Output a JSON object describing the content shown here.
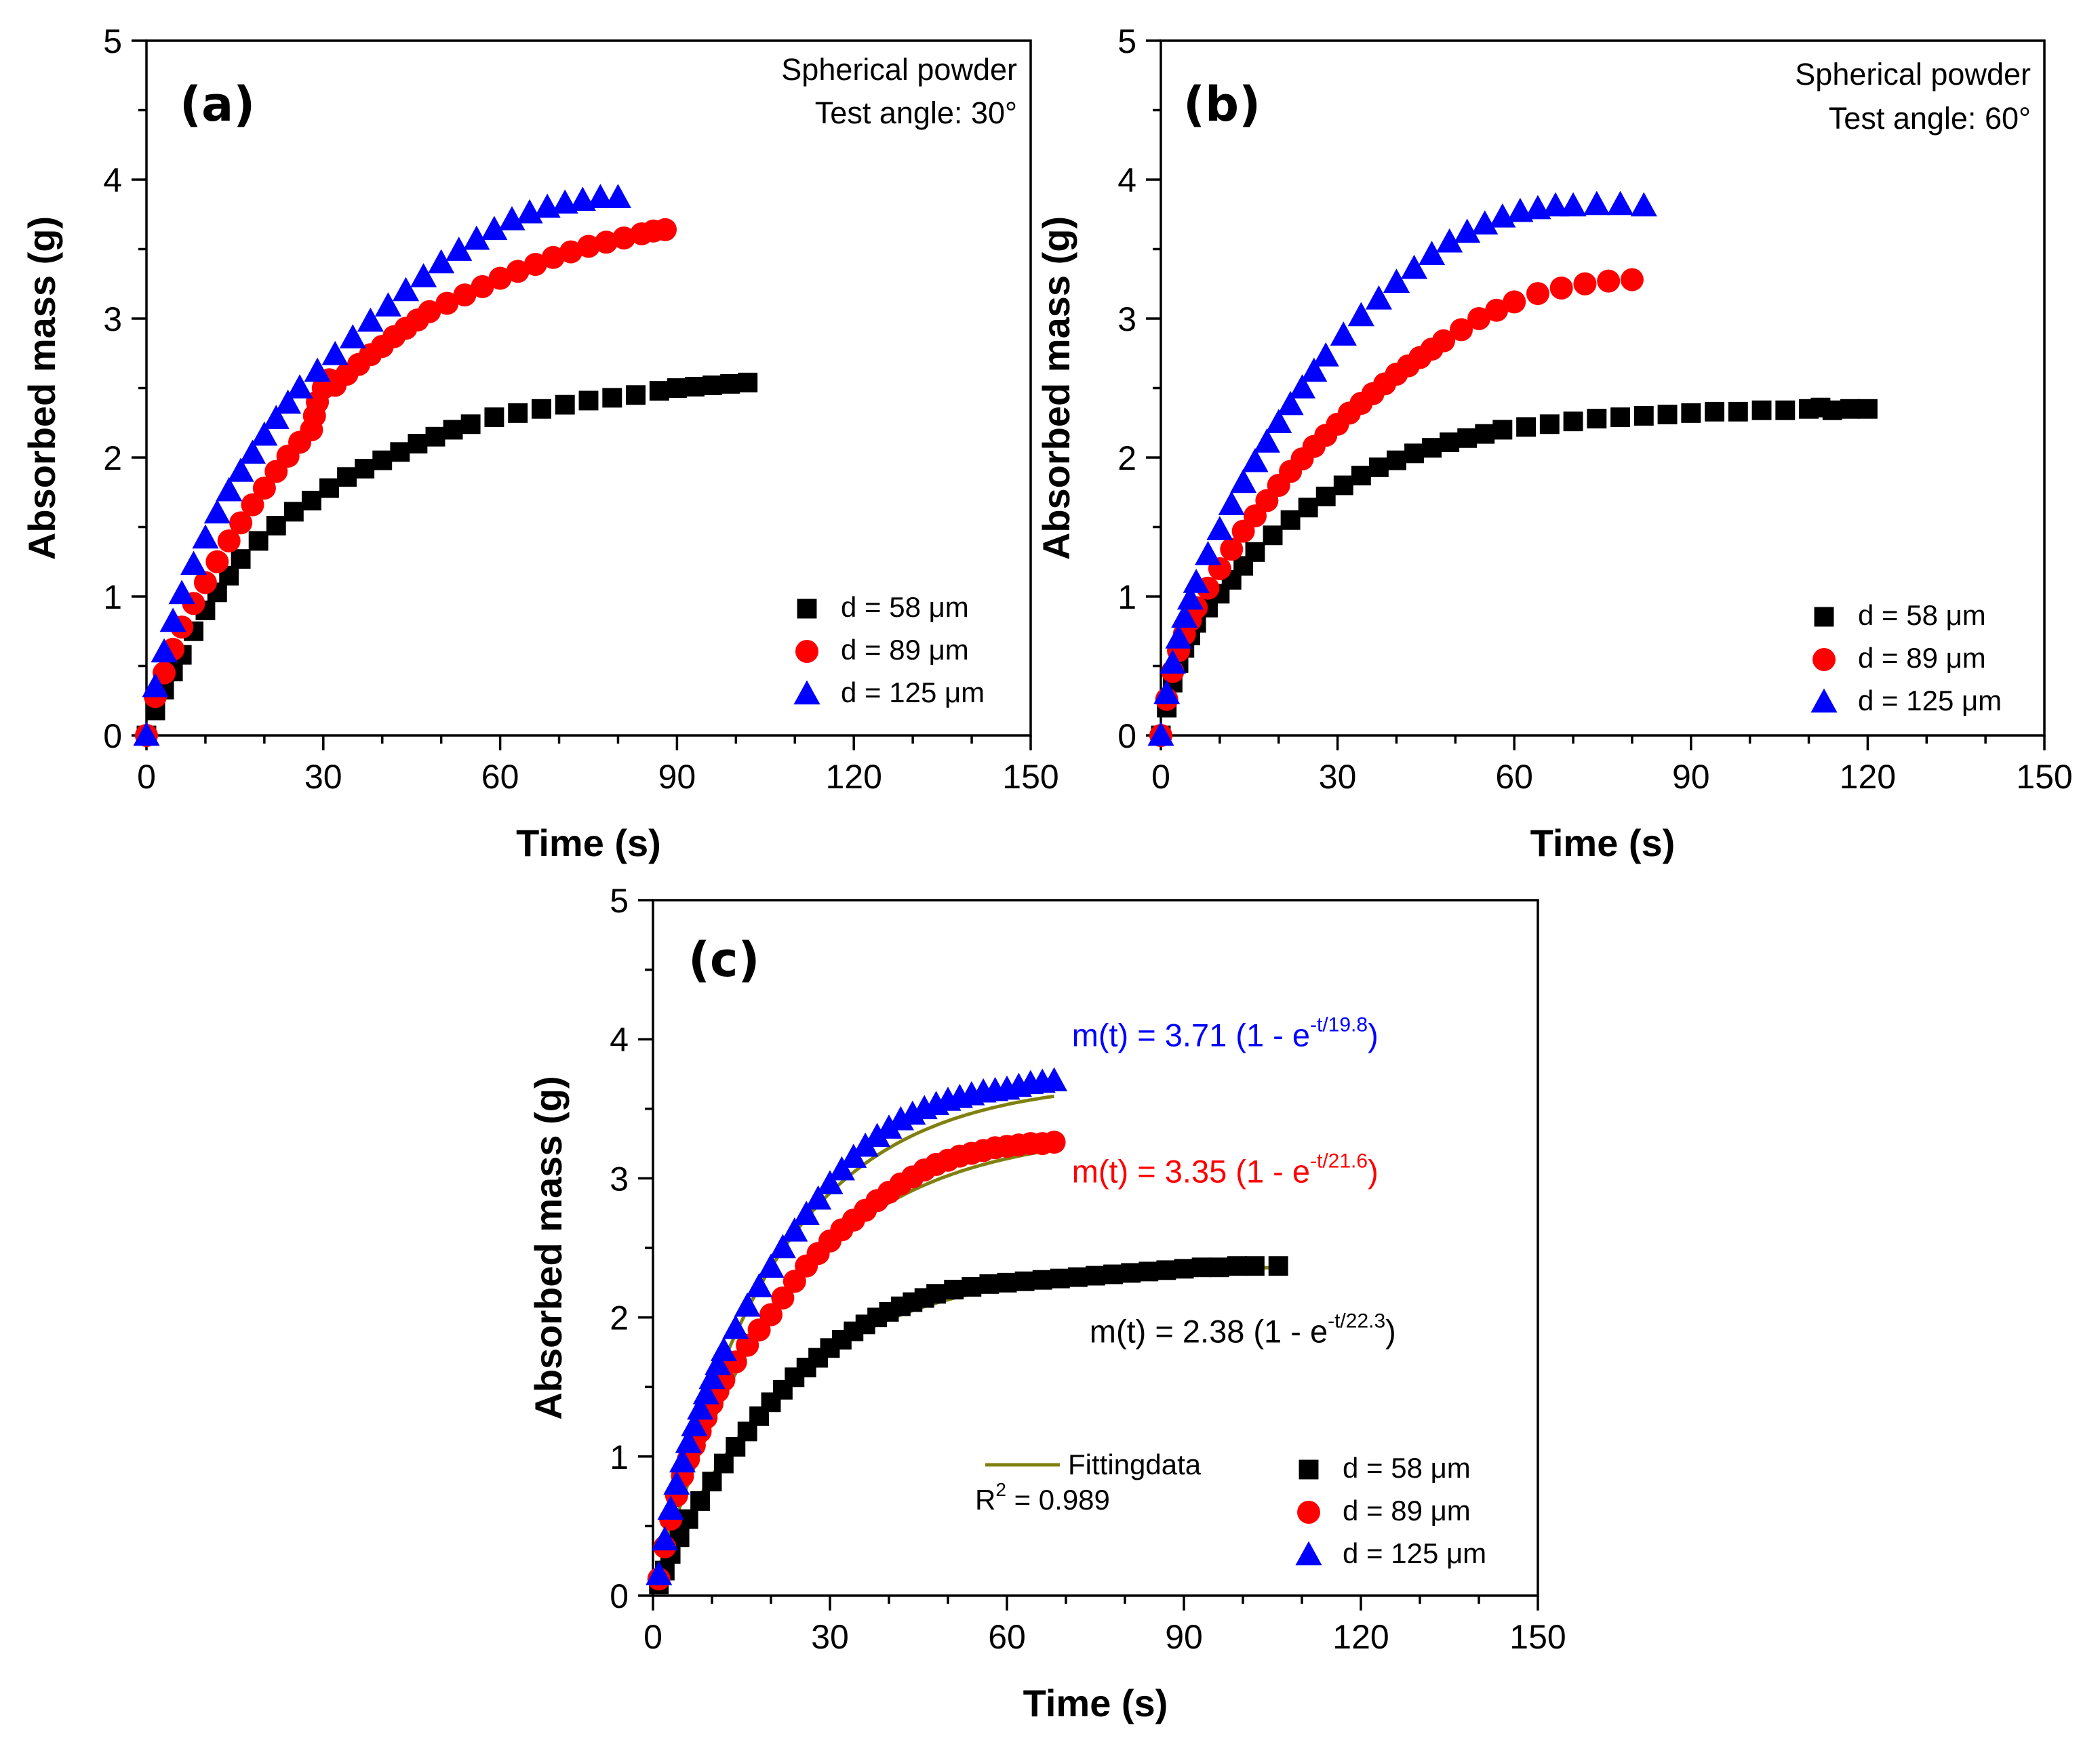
{
  "colors": {
    "s58": "#000000",
    "s89": "#ff0000",
    "s125": "#0000ff",
    "fit": "#808010"
  },
  "chart_data": [
    {
      "type": "scatter",
      "panel_label": "(a)",
      "note_lines": [
        "Spherical powder",
        "Test angle: 30°"
      ],
      "xlabel": "Time (s)",
      "ylabel": "Absorbed mass (g)",
      "xlim": [
        0,
        150
      ],
      "ylim": [
        0,
        5
      ],
      "xticks": [
        "0",
        "30",
        "60",
        "90",
        "120",
        "150"
      ],
      "yticks": [
        "0",
        "1",
        "2",
        "3",
        "4",
        "5"
      ],
      "legend_position": "bottom-right",
      "series": [
        {
          "name": "d = 58 μm",
          "marker": "square",
          "color": "#000000",
          "x": [
            0,
            1.5,
            3,
            4.5,
            6,
            8,
            10,
            12,
            14,
            16,
            19,
            22,
            25,
            28,
            31,
            34,
            37,
            40,
            43,
            46,
            49,
            52,
            55,
            59,
            63,
            67,
            71,
            75,
            79,
            83,
            87,
            90,
            93,
            96,
            99,
            102
          ],
          "y": [
            0,
            0.18,
            0.33,
            0.46,
            0.58,
            0.75,
            0.9,
            1.03,
            1.15,
            1.27,
            1.4,
            1.51,
            1.61,
            1.69,
            1.78,
            1.86,
            1.92,
            1.98,
            2.04,
            2.1,
            2.15,
            2.2,
            2.24,
            2.29,
            2.32,
            2.35,
            2.38,
            2.41,
            2.43,
            2.45,
            2.48,
            2.5,
            2.51,
            2.52,
            2.53,
            2.54
          ]
        },
        {
          "name": "d = 89 μm",
          "marker": "circle",
          "color": "#ff0000",
          "x": [
            0,
            1.5,
            3,
            4.5,
            6,
            8,
            10,
            12,
            14,
            16,
            18,
            20,
            22,
            24,
            26,
            28,
            28.5,
            29,
            30,
            31,
            32,
            34,
            36,
            38,
            40,
            42,
            44,
            46,
            48,
            51,
            54,
            57,
            60,
            63,
            66,
            69,
            72,
            75,
            78,
            81,
            84,
            86,
            88
          ],
          "y": [
            0,
            0.28,
            0.45,
            0.62,
            0.78,
            0.95,
            1.1,
            1.25,
            1.4,
            1.53,
            1.66,
            1.78,
            1.9,
            2.01,
            2.11,
            2.2,
            2.3,
            2.4,
            2.5,
            2.56,
            2.52,
            2.6,
            2.67,
            2.74,
            2.8,
            2.87,
            2.93,
            2.99,
            3.05,
            3.11,
            3.17,
            3.23,
            3.29,
            3.34,
            3.39,
            3.44,
            3.48,
            3.52,
            3.55,
            3.58,
            3.61,
            3.63,
            3.64
          ]
        },
        {
          "name": "d = 125 μm",
          "marker": "triangle",
          "color": "#0000ff",
          "x": [
            0,
            1.5,
            3,
            4.5,
            6,
            8,
            10,
            12,
            14,
            16,
            18,
            20,
            22,
            24,
            26,
            29,
            32,
            35,
            38,
            41,
            44,
            47,
            50,
            53,
            56,
            59,
            62,
            65,
            68,
            71,
            74,
            77,
            80
          ],
          "y": [
            0,
            0.35,
            0.6,
            0.82,
            1.02,
            1.23,
            1.42,
            1.6,
            1.76,
            1.9,
            2.03,
            2.16,
            2.28,
            2.39,
            2.5,
            2.62,
            2.74,
            2.86,
            2.98,
            3.09,
            3.2,
            3.3,
            3.4,
            3.49,
            3.57,
            3.64,
            3.71,
            3.76,
            3.8,
            3.83,
            3.85,
            3.87,
            3.87
          ]
        }
      ]
    },
    {
      "type": "scatter",
      "panel_label": "(b)",
      "note_lines": [
        "Spherical powder",
        "Test angle: 60°"
      ],
      "xlabel": "Time (s)",
      "ylabel": "Absorbed mass (g)",
      "xlim": [
        0,
        150
      ],
      "ylim": [
        0,
        5
      ],
      "xticks": [
        "0",
        "30",
        "60",
        "90",
        "120",
        "150"
      ],
      "yticks": [
        "0",
        "1",
        "2",
        "3",
        "4",
        "5"
      ],
      "legend_position": "bottom-right",
      "series": [
        {
          "name": "d = 58 μm",
          "marker": "square",
          "color": "#000000",
          "x": [
            0,
            1,
            2,
            3,
            4,
            5,
            6,
            8,
            10,
            12,
            14,
            16,
            19,
            22,
            25,
            28,
            31,
            34,
            37,
            40,
            43,
            46,
            49,
            52,
            55,
            58,
            62,
            66,
            70,
            74,
            78,
            82,
            86,
            90,
            94,
            98,
            102,
            106,
            110,
            112,
            114,
            117,
            120
          ],
          "y": [
            0,
            0.2,
            0.38,
            0.52,
            0.63,
            0.72,
            0.81,
            0.92,
            1.02,
            1.12,
            1.22,
            1.32,
            1.44,
            1.55,
            1.64,
            1.72,
            1.8,
            1.87,
            1.93,
            1.98,
            2.03,
            2.07,
            2.11,
            2.14,
            2.17,
            2.2,
            2.22,
            2.24,
            2.26,
            2.28,
            2.29,
            2.3,
            2.31,
            2.32,
            2.33,
            2.33,
            2.34,
            2.34,
            2.35,
            2.36,
            2.34,
            2.35,
            2.35
          ]
        },
        {
          "name": "d = 89 μm",
          "marker": "circle",
          "color": "#ff0000",
          "x": [
            0,
            1,
            2,
            3,
            4,
            5,
            6,
            8,
            10,
            12,
            14,
            16,
            18,
            20,
            22,
            24,
            26,
            28,
            30,
            32,
            34,
            36,
            38,
            40,
            42,
            44,
            46,
            48,
            51,
            54,
            57,
            60,
            64,
            68,
            72,
            76,
            80
          ],
          "y": [
            0,
            0.26,
            0.46,
            0.61,
            0.73,
            0.83,
            0.92,
            1.06,
            1.2,
            1.34,
            1.47,
            1.58,
            1.69,
            1.8,
            1.9,
            1.99,
            2.08,
            2.16,
            2.24,
            2.32,
            2.39,
            2.46,
            2.53,
            2.6,
            2.66,
            2.72,
            2.78,
            2.84,
            2.92,
            3.0,
            3.06,
            3.12,
            3.18,
            3.22,
            3.25,
            3.27,
            3.28
          ]
        },
        {
          "name": "d = 125 μm",
          "marker": "triangle",
          "color": "#0000ff",
          "x": [
            0,
            1,
            2,
            3,
            4,
            5,
            6,
            8,
            10,
            12,
            14,
            16,
            18,
            20,
            22,
            24,
            26,
            28,
            31,
            34,
            37,
            40,
            43,
            46,
            49,
            52,
            55,
            58,
            61,
            64,
            67,
            70,
            74,
            78,
            82
          ],
          "y": [
            0,
            0.3,
            0.52,
            0.7,
            0.85,
            0.98,
            1.1,
            1.3,
            1.48,
            1.66,
            1.82,
            1.97,
            2.11,
            2.25,
            2.38,
            2.5,
            2.62,
            2.73,
            2.88,
            3.02,
            3.14,
            3.26,
            3.36,
            3.46,
            3.55,
            3.62,
            3.68,
            3.73,
            3.77,
            3.79,
            3.81,
            3.81,
            3.82,
            3.82,
            3.81
          ]
        }
      ]
    },
    {
      "type": "scatter",
      "panel_label": "(c)",
      "xlabel": "Time (s)",
      "ylabel": "Absorbed mass (g)",
      "xlim": [
        0,
        150
      ],
      "ylim": [
        0,
        5
      ],
      "xticks": [
        "0",
        "30",
        "60",
        "90",
        "120",
        "150"
      ],
      "yticks": [
        "0",
        "1",
        "2",
        "3",
        "4",
        "5"
      ],
      "legend_position": "bottom-right",
      "fit_legend": {
        "label": "Fittingdata",
        "r2_base": "R",
        "r2_sup": "2",
        "r2_value": " = 0.989"
      },
      "equations": [
        {
          "color": "#0000ff",
          "x": 71,
          "y": 3.95,
          "text": "m(t) = 3.71 (1 - e",
          "sup": "-t/19.8",
          "tail": ")"
        },
        {
          "color": "#ff0000",
          "x": 71,
          "y": 2.97,
          "text": "m(t) = 3.35 (1 - e",
          "sup": "-t/21.6",
          "tail": ")"
        },
        {
          "color": "#000000",
          "x": 74,
          "y": 1.82,
          "text": "m(t) = 2.38 (1 - e",
          "sup": "-t/22.3",
          "tail": ")"
        }
      ],
      "fits": [
        {
          "amplitude": 2.38,
          "tau": 22.3,
          "x_start": 1,
          "x_end": 106
        },
        {
          "amplitude": 3.35,
          "tau": 21.6,
          "x_start": 1,
          "x_end": 68
        },
        {
          "amplitude": 3.71,
          "tau": 19.8,
          "x_start": 1,
          "x_end": 68
        }
      ],
      "series": [
        {
          "name": "d = 58 μm",
          "marker": "square",
          "color": "#000000",
          "x": [
            1,
            2,
            3,
            4.5,
            6,
            8,
            10,
            12,
            14,
            16,
            18,
            20,
            22,
            24,
            26,
            28,
            30,
            32,
            34,
            36,
            38,
            40,
            42,
            44,
            46,
            48,
            51,
            54,
            57,
            60,
            63,
            66,
            69,
            72,
            75,
            78,
            81,
            84,
            87,
            90,
            93,
            96,
            99,
            102,
            106
          ],
          "y": [
            0.08,
            0.18,
            0.3,
            0.42,
            0.55,
            0.68,
            0.82,
            0.95,
            1.07,
            1.18,
            1.29,
            1.39,
            1.48,
            1.57,
            1.64,
            1.71,
            1.78,
            1.84,
            1.9,
            1.95,
            2.0,
            2.04,
            2.08,
            2.11,
            2.14,
            2.17,
            2.2,
            2.22,
            2.24,
            2.25,
            2.26,
            2.27,
            2.28,
            2.29,
            2.3,
            2.31,
            2.32,
            2.33,
            2.34,
            2.35,
            2.36,
            2.36,
            2.37,
            2.37,
            2.37
          ]
        },
        {
          "name": "d = 89 μm",
          "marker": "circle",
          "color": "#ff0000",
          "x": [
            1,
            2,
            3,
            4,
            5,
            6,
            7,
            8,
            9,
            10,
            11,
            12,
            14,
            16,
            18,
            20,
            22,
            24,
            26,
            28,
            30,
            32,
            34,
            36,
            38,
            40,
            42,
            44,
            46,
            48,
            50,
            52,
            54,
            56,
            58,
            60,
            62,
            64,
            66,
            68
          ],
          "y": [
            0.12,
            0.35,
            0.55,
            0.72,
            0.86,
            0.98,
            1.08,
            1.18,
            1.28,
            1.38,
            1.47,
            1.55,
            1.68,
            1.8,
            1.91,
            2.02,
            2.14,
            2.26,
            2.37,
            2.46,
            2.55,
            2.63,
            2.7,
            2.77,
            2.84,
            2.9,
            2.96,
            3.01,
            3.06,
            3.1,
            3.13,
            3.16,
            3.18,
            3.2,
            3.22,
            3.23,
            3.24,
            3.25,
            3.25,
            3.26
          ]
        },
        {
          "name": "d = 125 μm",
          "marker": "triangle",
          "color": "#0000ff",
          "x": [
            1,
            2,
            3,
            4,
            5,
            6,
            7,
            8,
            9,
            10,
            11,
            12,
            14,
            16,
            18,
            20,
            22,
            24,
            26,
            28,
            30,
            32,
            34,
            36,
            38,
            40,
            42,
            44,
            46,
            48,
            50,
            52,
            54,
            56,
            58,
            60,
            62,
            64,
            66,
            68
          ],
          "y": [
            0.15,
            0.4,
            0.62,
            0.8,
            0.96,
            1.1,
            1.22,
            1.34,
            1.45,
            1.56,
            1.66,
            1.76,
            1.92,
            2.08,
            2.22,
            2.36,
            2.5,
            2.62,
            2.74,
            2.85,
            2.96,
            3.06,
            3.15,
            3.23,
            3.3,
            3.36,
            3.42,
            3.46,
            3.5,
            3.53,
            3.56,
            3.58,
            3.6,
            3.62,
            3.63,
            3.64,
            3.66,
            3.68,
            3.69,
            3.7
          ]
        }
      ]
    }
  ]
}
